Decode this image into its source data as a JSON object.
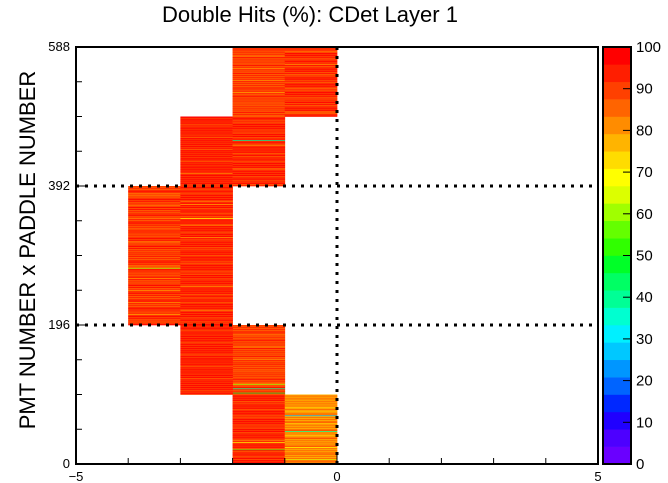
{
  "chart_data": {
    "type": "heatmap",
    "title": "Double Hits (%): CDet Layer 1",
    "xlabel": "",
    "ylabel": "PMT NUMBER x PADDLE NUMBER",
    "xlim": [
      -5,
      5
    ],
    "ylim": [
      0,
      588
    ],
    "x_ticks": [
      "−5",
      "0",
      "5"
    ],
    "y_ticks": [
      "0",
      "196",
      "392",
      "588"
    ],
    "colorbar": {
      "range": [
        0,
        100
      ],
      "ticks": [
        "0",
        "10",
        "20",
        "30",
        "40",
        "50",
        "60",
        "70",
        "80",
        "90",
        "100"
      ],
      "palette": [
        "#6a00ff",
        "#4d00ff",
        "#2000ff",
        "#0028ff",
        "#0064ff",
        "#0096ff",
        "#00c8ff",
        "#00f0ff",
        "#00ffd0",
        "#00ff96",
        "#00ff64",
        "#00ff28",
        "#30ff00",
        "#64ff00",
        "#a0ff00",
        "#dcff00",
        "#ffff00",
        "#ffdc00",
        "#ffb400",
        "#ff8c00",
        "#ff6400",
        "#ff4000",
        "#ff1e00",
        "#ff0000"
      ]
    },
    "reference_lines": {
      "x": [
        0
      ],
      "y": [
        196,
        392
      ]
    },
    "columns": [
      {
        "x0": -2,
        "x1": -1,
        "y0": 0,
        "y1": 98,
        "base": 93,
        "accent": [
          [
            6,
            84
          ],
          [
            20,
            55
          ],
          [
            30,
            70
          ]
        ]
      },
      {
        "x0": -1,
        "x1": 0,
        "y0": 0,
        "y1": 98,
        "base": 82,
        "accent": [
          [
            46,
            40
          ],
          [
            68,
            30
          ],
          [
            80,
            72
          ]
        ]
      },
      {
        "x0": -2,
        "x1": -1,
        "y0": 98,
        "y1": 196,
        "base": 90,
        "accent": [
          [
            2,
            48
          ],
          [
            8,
            40
          ],
          [
            14,
            60
          ]
        ]
      },
      {
        "x0": -3,
        "x1": -2,
        "y0": 98,
        "y1": 196,
        "base": 94,
        "accent": []
      },
      {
        "x0": -4,
        "x1": -3,
        "y0": 196,
        "y1": 392,
        "base": 91,
        "accent": [
          [
            80,
            62
          ],
          [
            182,
            84
          ]
        ]
      },
      {
        "x0": -3,
        "x1": -2,
        "y0": 196,
        "y1": 392,
        "base": 93,
        "accent": [
          [
            150,
            70
          ],
          [
            170,
            76
          ]
        ]
      },
      {
        "x0": -3,
        "x1": -2,
        "y0": 392,
        "y1": 490,
        "base": 94,
        "accent": []
      },
      {
        "x0": -2,
        "x1": -1,
        "y0": 392,
        "y1": 490,
        "base": 93,
        "accent": [
          [
            64,
            40
          ]
        ]
      },
      {
        "x0": -2,
        "x1": -1,
        "y0": 490,
        "y1": 588,
        "base": 90,
        "accent": []
      },
      {
        "x0": -1,
        "x1": 0,
        "y0": 490,
        "y1": 588,
        "base": 92,
        "accent": []
      }
    ]
  }
}
